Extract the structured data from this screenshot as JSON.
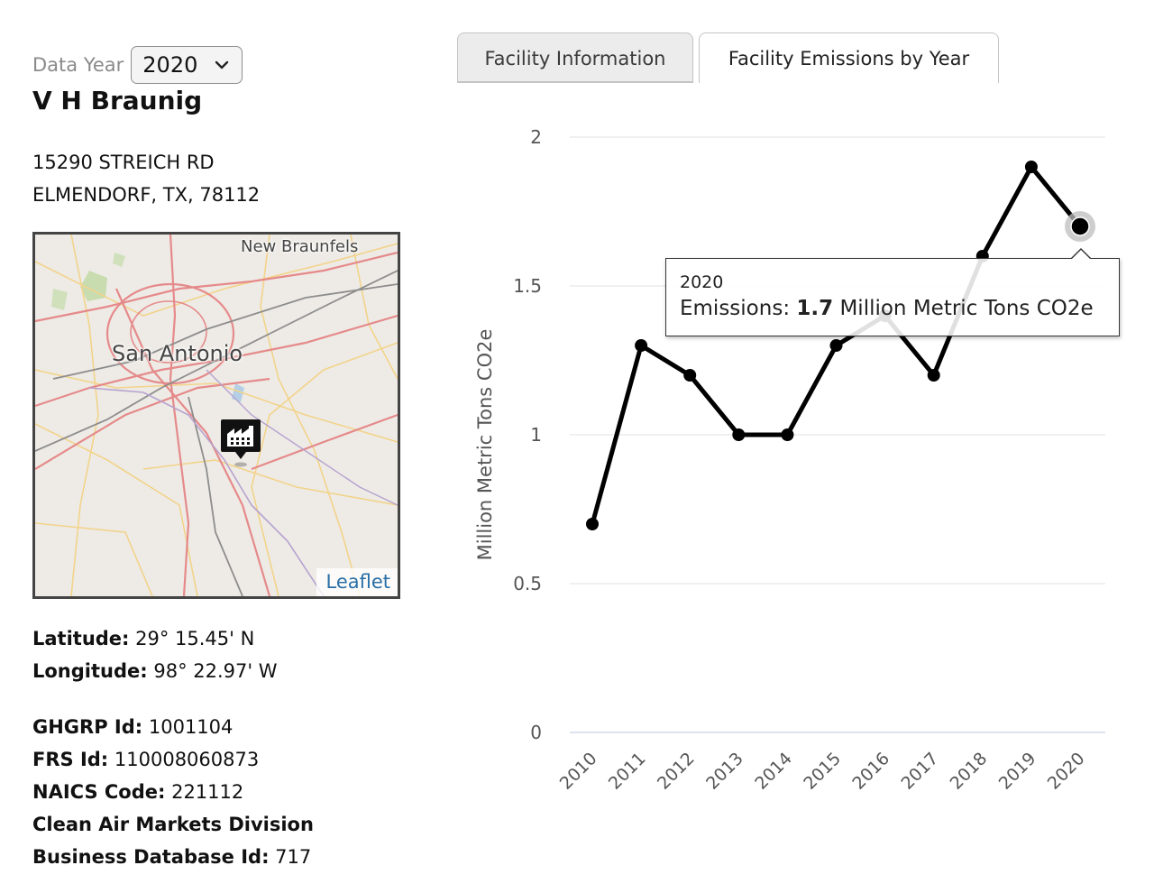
{
  "filter": {
    "label": "Data Year",
    "selected_year": "2020"
  },
  "facility": {
    "name": "V H Braunig",
    "address_line1": "15290 STREICH RD",
    "address_line2": "ELMENDORF, TX, 78112"
  },
  "map": {
    "place_labels": [
      "San Antonio",
      "New Braunfels"
    ],
    "attribution": "Leaflet",
    "marker_icon": "factory-icon"
  },
  "location": {
    "latitude_label": "Latitude:",
    "latitude_value": "29° 15.45' N",
    "longitude_label": "Longitude:",
    "longitude_value": "98° 22.97' W"
  },
  "identifiers": {
    "ghgrp_label": "GHGRP Id:",
    "ghgrp_value": "1001104",
    "frs_label": "FRS Id:",
    "frs_value": "110008060873",
    "naics_label": "NAICS Code:",
    "naics_value": "221112",
    "camd_label": "Clean Air Markets Division",
    "bdb_label": "Business Database Id:",
    "bdb_value": "717"
  },
  "tabs": [
    {
      "label": "Facility Information",
      "active": false
    },
    {
      "label": "Facility Emissions by Year",
      "active": true
    }
  ],
  "tooltip": {
    "year": "2020",
    "prefix": "Emissions:",
    "value": "1.7",
    "unit": "Million Metric Tons CO2e"
  },
  "colors": {
    "line": "#000000",
    "grid": "#e6e6e6",
    "axis_text": "#555555",
    "link": "#2a6fa6"
  },
  "chart_data": {
    "type": "line",
    "title": "",
    "xlabel": "",
    "ylabel": "Million Metric Tons CO2e",
    "categories": [
      "2010",
      "2011",
      "2012",
      "2013",
      "2014",
      "2015",
      "2016",
      "2017",
      "2018",
      "2019",
      "2020"
    ],
    "series": [
      {
        "name": "Emissions",
        "values": [
          0.7,
          1.3,
          1.2,
          1.0,
          1.0,
          1.3,
          1.4,
          1.2,
          1.6,
          1.9,
          1.7
        ]
      }
    ],
    "y_ticks": [
      0,
      0.5,
      1,
      1.5,
      2
    ],
    "y_tick_labels": [
      "0",
      "0.5",
      "1",
      "1.5",
      "2"
    ],
    "ylim": [
      0,
      2
    ],
    "grid": true,
    "highlighted_category": "2020",
    "legend": "none"
  }
}
